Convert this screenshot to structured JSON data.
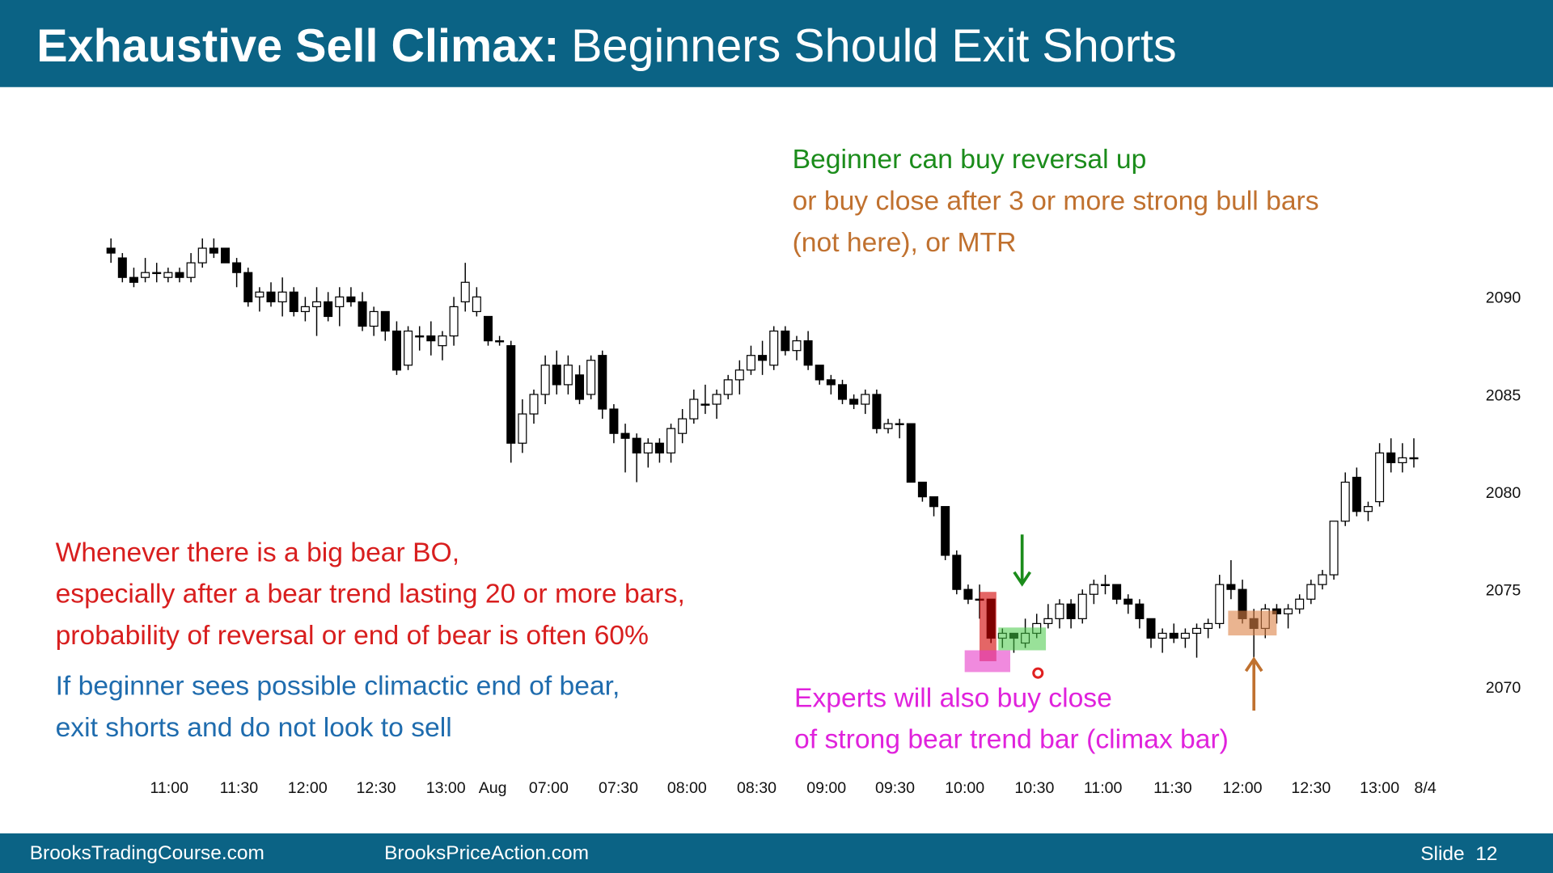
{
  "header": {
    "title_bold": "Exhaustive Sell Climax:",
    "title_rest": "Beginners Should Exit Shorts"
  },
  "chart_data": {
    "type": "candlestick",
    "open": [
      2092.5,
      2092,
      2091,
      2091,
      2091.25,
      2091,
      2091.25,
      2091,
      2091.75,
      2092.5,
      2092.5,
      2091.75,
      2091.25,
      2090,
      2090.25,
      2089.75,
      2090.25,
      2089.25,
      2089.5,
      2089.75,
      2089.5,
      2090,
      2089.75,
      2088.5,
      2089.25,
      2088.25,
      2086.5,
      2088,
      2088,
      2087.5,
      2088,
      2089.75,
      2089.25,
      2089,
      2087.75,
      2087.5,
      2082.5,
      2084,
      2085,
      2086.5,
      2085.5,
      2086,
      2085,
      2087,
      2084.25,
      2083,
      2082.75,
      2082,
      2082.5,
      2082,
      2083,
      2083.75,
      2084.5,
      2084.5,
      2085,
      2085.75,
      2086.25,
      2087,
      2086.5,
      2088.25,
      2087.25,
      2087.75,
      2086.5,
      2085.75,
      2085.5,
      2084.75,
      2084.5,
      2085,
      2083.25,
      2083.5,
      2083.5,
      2080.5,
      2079.75,
      2079.25,
      2076.75,
      2075,
      2074.5,
      2074.5,
      2072.5,
      2072.75,
      2072.25,
      2072.75,
      2073.25,
      2073.5,
      2074.25,
      2073.5,
      2074.75,
      2075.25,
      2075.25,
      2074.5,
      2074.25,
      2073.5,
      2072.5,
      2072.75,
      2072.5,
      2072.75,
      2073,
      2073.25,
      2075.25,
      2075,
      2073.5,
      2073,
      2074,
      2073.75,
      2074,
      2074.5,
      2075.25,
      2075.75,
      2078.5,
      2080.75,
      2079,
      2079.5,
      2082,
      2081.5,
      2081.75
    ],
    "high": [
      2093,
      2092.25,
      2091.5,
      2092,
      2091.75,
      2091.5,
      2091.5,
      2092.25,
      2093,
      2093,
      2092.5,
      2092,
      2091.5,
      2090.5,
      2090.75,
      2091,
      2090.5,
      2090,
      2090.5,
      2090.25,
      2090.5,
      2090.5,
      2090.25,
      2089.5,
      2089.25,
      2088.75,
      2088.5,
      2088.5,
      2088.75,
      2088.25,
      2090,
      2091.75,
      2090.5,
      2089,
      2088,
      2087.75,
      2084.75,
      2085.25,
      2087,
      2087.25,
      2087,
      2086.5,
      2087,
      2087.25,
      2084.5,
      2083.5,
      2083,
      2082.75,
      2082.75,
      2083.5,
      2084.25,
      2085.25,
      2085.5,
      2085.25,
      2086,
      2086.75,
      2087.5,
      2087.75,
      2088.5,
      2088.5,
      2088,
      2088.25,
      2086.5,
      2086,
      2085.75,
      2085,
      2085.25,
      2085.25,
      2083.75,
      2083.75,
      2083.5,
      2080.5,
      2079.75,
      2079.25,
      2077,
      2075.25,
      2075.25,
      2074.5,
      2073,
      2072.75,
      2073.5,
      2073.75,
      2074.25,
      2074.5,
      2074.5,
      2075,
      2075.5,
      2075.75,
      2075.25,
      2074.75,
      2074.5,
      2073.5,
      2073,
      2073.25,
      2073,
      2073.25,
      2073.5,
      2075.75,
      2076.5,
      2075.5,
      2074,
      2074.25,
      2074.25,
      2074.25,
      2074.75,
      2075.5,
      2076,
      2078.5,
      2081,
      2081.25,
      2079.5,
      2082.5,
      2082.75,
      2082.5,
      2082.75
    ],
    "low": [
      2091.75,
      2090.75,
      2090.5,
      2090.75,
      2090.75,
      2090.75,
      2090.75,
      2090.75,
      2091.5,
      2092,
      2091.75,
      2090.5,
      2089.5,
      2089.25,
      2089.5,
      2089,
      2089,
      2088.75,
      2088,
      2088.75,
      2088.5,
      2089.5,
      2088.25,
      2088,
      2087.75,
      2086,
      2086.25,
      2087.25,
      2087,
      2086.75,
      2087.5,
      2089.25,
      2089,
      2087.5,
      2087.5,
      2081.5,
      2082,
      2083.5,
      2084.5,
      2085,
      2085,
      2084.5,
      2084.75,
      2083.75,
      2082.5,
      2081,
      2080.5,
      2081.25,
      2081.5,
      2081.5,
      2082.5,
      2083.5,
      2084,
      2083.75,
      2084.75,
      2085,
      2086,
      2086,
      2086.25,
      2087,
      2086.75,
      2086.25,
      2085.5,
      2085,
      2084.5,
      2084.25,
      2084,
      2083,
      2083,
      2082.75,
      2080.5,
      2079.5,
      2078.75,
      2076.5,
      2074.75,
      2074.25,
      2073.5,
      2072.25,
      2072,
      2071.75,
      2072,
      2072.5,
      2073,
      2073,
      2073,
      2073.25,
      2074.25,
      2074.75,
      2074.25,
      2073.75,
      2073,
      2072,
      2071.75,
      2072.25,
      2072,
      2071.5,
      2072.5,
      2073,
      2074.5,
      2073.25,
      2071.25,
      2072.5,
      2073.25,
      2073,
      2073.75,
      2074.25,
      2075,
      2075.5,
      2078.25,
      2078.75,
      2078.5,
      2079.25,
      2081,
      2081,
      2081.25
    ],
    "close": [
      2092.25,
      2091,
      2090.75,
      2091.25,
      2091.25,
      2091.25,
      2091,
      2091.75,
      2092.5,
      2092.25,
      2091.75,
      2091.25,
      2089.75,
      2090.25,
      2089.75,
      2090.25,
      2089.25,
      2089.5,
      2089.75,
      2089,
      2090,
      2089.75,
      2088.5,
      2089.25,
      2088.25,
      2086.25,
      2088.25,
      2088,
      2087.75,
      2088,
      2089.5,
      2090.75,
      2090,
      2087.75,
      2087.75,
      2082.5,
      2084,
      2085,
      2086.5,
      2085.5,
      2086.5,
      2084.75,
      2086.75,
      2084.25,
      2083,
      2082.75,
      2082,
      2082.5,
      2082,
      2083.25,
      2083.75,
      2084.75,
      2084.5,
      2085,
      2085.75,
      2086.25,
      2087,
      2086.75,
      2088.25,
      2087.25,
      2087.75,
      2086.5,
      2085.75,
      2085.5,
      2084.75,
      2084.5,
      2085,
      2083.25,
      2083.5,
      2083.5,
      2080.5,
      2079.75,
      2079.25,
      2076.75,
      2075,
      2074.5,
      2074.5,
      2072.5,
      2072.75,
      2072.5,
      2072.75,
      2073.25,
      2073.5,
      2074.25,
      2073.5,
      2074.75,
      2075.25,
      2075.25,
      2074.5,
      2074.25,
      2073.5,
      2072.5,
      2072.75,
      2072.5,
      2072.75,
      2073,
      2073.25,
      2075.25,
      2075,
      2073.5,
      2073,
      2074,
      2073.75,
      2074,
      2074.5,
      2075.25,
      2075.75,
      2078.5,
      2080.5,
      2079,
      2079.25,
      2082,
      2081.5,
      2081.75,
      2081.75
    ],
    "up_color": "#ffffff",
    "down_color": "#000000",
    "xlim": [
      -1,
      116
    ],
    "ylim": [
      2066,
      2094
    ],
    "xticks": [
      {
        "value": 5.1,
        "label": "11:00"
      },
      {
        "value": 11.2,
        "label": "11:30"
      },
      {
        "value": 17.2,
        "label": "12:00"
      },
      {
        "value": 23.2,
        "label": "12:30"
      },
      {
        "value": 29.3,
        "label": "13:00"
      },
      {
        "value": 33.4,
        "label": "Aug"
      },
      {
        "value": 38.3,
        "label": "07:00"
      },
      {
        "value": 44.4,
        "label": "07:30"
      },
      {
        "value": 50.4,
        "label": "08:00"
      },
      {
        "value": 56.5,
        "label": "08:30"
      },
      {
        "value": 62.6,
        "label": "09:00"
      },
      {
        "value": 68.6,
        "label": "09:30"
      },
      {
        "value": 74.7,
        "label": "10:00"
      },
      {
        "value": 80.8,
        "label": "10:30"
      },
      {
        "value": 86.8,
        "label": "11:00"
      },
      {
        "value": 92.9,
        "label": "11:30"
      },
      {
        "value": 99,
        "label": "12:00"
      },
      {
        "value": 105,
        "label": "12:30"
      },
      {
        "value": 111,
        "label": "13:00"
      },
      {
        "value": 115,
        "label": "8/4"
      }
    ],
    "yticks": [
      2070,
      2075,
      2080,
      2085,
      2090
    ],
    "annotations": [
      {
        "text": "Beginner can buy reversal up",
        "color": "#1b8c1b"
      },
      {
        "text": "or buy close after 3 or more strong bull bars",
        "color": "#c0712f"
      },
      {
        "text": "(not here), or MTR",
        "color": "#c0712f"
      },
      {
        "text": "Whenever there is a big bear BO,",
        "color": "#d81e1e"
      },
      {
        "text": "especially after a bear trend lasting 20 or more bars,",
        "color": "#d81e1e"
      },
      {
        "text": "probability of reversal or end of bear is often 60%",
        "color": "#d81e1e"
      },
      {
        "text": "If beginner sees possible climactic end of bear,",
        "color": "#1f6cae"
      },
      {
        "text": "exit shorts and do not look to sell",
        "color": "#1f6cae"
      },
      {
        "text": "Experts will also buy close",
        "color": "#e022dc"
      },
      {
        "text": "of strong bear trend bar (climax bar)",
        "color": "#e022dc"
      }
    ]
  },
  "footer": {
    "left": "BrooksTradingCourse.com",
    "middle": "BrooksPriceAction.com",
    "slide": "Slide  12"
  }
}
